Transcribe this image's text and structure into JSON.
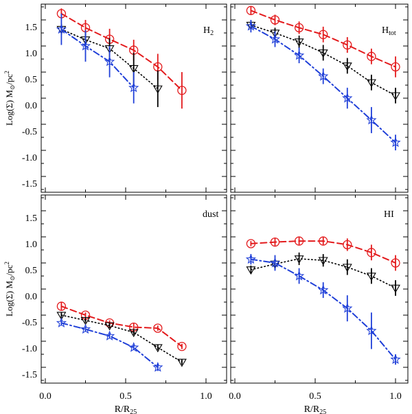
{
  "chart_data": [
    {
      "type": "line",
      "label": "H",
      "label_sub": "2",
      "xlim": [
        0,
        1.1
      ],
      "ylim": [
        -1.8,
        1.8
      ],
      "series": [
        {
          "name": "red",
          "color": "#e31a1c",
          "marker": "circle",
          "dash": "dashed",
          "x": [
            0.1,
            0.25,
            0.4,
            0.55,
            0.7,
            0.85
          ],
          "y": [
            1.62,
            1.35,
            1.13,
            0.92,
            0.6,
            0.15
          ],
          "err": [
            0.1,
            0.15,
            0.2,
            0.2,
            0.25,
            0.35
          ]
        },
        {
          "name": "black",
          "color": "#000000",
          "marker": "triangle-down",
          "dash": "dotted",
          "x": [
            0.1,
            0.25,
            0.4,
            0.55,
            0.7
          ],
          "y": [
            1.32,
            1.12,
            0.95,
            0.57,
            0.18
          ],
          "err": [
            0.1,
            0.15,
            0.2,
            0.3,
            0.35
          ]
        },
        {
          "name": "blue",
          "color": "#1f3fd8",
          "marker": "star",
          "dash": "dashdot",
          "x": [
            0.1,
            0.25,
            0.4,
            0.55
          ],
          "y": [
            1.32,
            1.0,
            0.7,
            0.2
          ],
          "err": [
            0.3,
            0.3,
            0.3,
            0.3
          ]
        }
      ]
    },
    {
      "type": "line",
      "label": "H",
      "label_sub": "tot",
      "xlim": [
        0,
        1.1
      ],
      "ylim": [
        -1.8,
        1.8
      ],
      "series": [
        {
          "name": "red",
          "color": "#e31a1c",
          "marker": "circle",
          "dash": "dashed",
          "x": [
            0.1,
            0.25,
            0.4,
            0.55,
            0.7,
            0.85,
            1.0
          ],
          "y": [
            1.68,
            1.5,
            1.35,
            1.22,
            1.02,
            0.8,
            0.6
          ],
          "err": [
            0.08,
            0.1,
            0.12,
            0.15,
            0.15,
            0.15,
            0.2
          ]
        },
        {
          "name": "black",
          "color": "#000000",
          "marker": "triangle-down",
          "dash": "dotted",
          "x": [
            0.1,
            0.25,
            0.4,
            0.55,
            0.7,
            0.85,
            1.0
          ],
          "y": [
            1.4,
            1.25,
            1.08,
            0.87,
            0.62,
            0.3,
            0.05
          ],
          "err": [
            0.08,
            0.1,
            0.12,
            0.15,
            0.15,
            0.15,
            0.15
          ]
        },
        {
          "name": "blue",
          "color": "#1f3fd8",
          "marker": "star",
          "dash": "dashdot",
          "x": [
            0.1,
            0.25,
            0.4,
            0.55,
            0.7,
            0.85,
            1.0
          ],
          "y": [
            1.38,
            1.13,
            0.82,
            0.42,
            0.0,
            -0.42,
            -0.85
          ],
          "err": [
            0.12,
            0.15,
            0.15,
            0.15,
            0.2,
            0.25,
            0.15
          ]
        }
      ]
    },
    {
      "type": "line",
      "label": "dust",
      "label_sub": "",
      "xlim": [
        0,
        1.1
      ],
      "ylim": [
        -1.8,
        1.8
      ],
      "series": [
        {
          "name": "red",
          "color": "#e31a1c",
          "marker": "circle",
          "dash": "dashed",
          "x": [
            0.1,
            0.25,
            0.4,
            0.55,
            0.7,
            0.85
          ],
          "y": [
            -0.33,
            -0.5,
            -0.65,
            -0.73,
            -0.75,
            -1.1
          ],
          "err": [
            0.08,
            0.05,
            0.05,
            0.08,
            0.05,
            0.05
          ]
        },
        {
          "name": "black",
          "color": "#000000",
          "marker": "triangle-down",
          "dash": "dotted",
          "x": [
            0.1,
            0.25,
            0.4,
            0.55,
            0.7,
            0.85
          ],
          "y": [
            -0.5,
            -0.6,
            -0.7,
            -0.83,
            -1.12,
            -1.4
          ],
          "err": [
            0.05,
            0.05,
            0.05,
            0.05,
            0.05,
            0.05
          ]
        },
        {
          "name": "blue",
          "color": "#1f3fd8",
          "marker": "star",
          "dash": "dashdot",
          "x": [
            0.1,
            0.25,
            0.4,
            0.55,
            0.7
          ],
          "y": [
            -0.65,
            -0.77,
            -0.9,
            -1.12,
            -1.5
          ],
          "err": [
            0.05,
            0.05,
            0.05,
            0.05,
            0.07
          ]
        }
      ]
    },
    {
      "type": "line",
      "label": "HI",
      "label_sub": "",
      "xlim": [
        0,
        1.1
      ],
      "ylim": [
        -1.8,
        1.8
      ],
      "series": [
        {
          "name": "red",
          "color": "#e31a1c",
          "marker": "circle",
          "dash": "dashed",
          "x": [
            0.1,
            0.25,
            0.4,
            0.55,
            0.7,
            0.85,
            1.0
          ],
          "y": [
            0.87,
            0.9,
            0.92,
            0.92,
            0.85,
            0.7,
            0.5
          ],
          "err": [
            0.05,
            0.08,
            0.08,
            0.08,
            0.12,
            0.15,
            0.15
          ]
        },
        {
          "name": "black",
          "color": "#000000",
          "marker": "triangle-down",
          "dash": "dotted",
          "x": [
            0.1,
            0.25,
            0.4,
            0.55,
            0.7,
            0.85,
            1.0
          ],
          "y": [
            0.37,
            0.48,
            0.58,
            0.55,
            0.42,
            0.25,
            0.02
          ],
          "err": [
            0.08,
            0.1,
            0.12,
            0.12,
            0.15,
            0.15,
            0.15
          ]
        },
        {
          "name": "blue",
          "color": "#1f3fd8",
          "marker": "star",
          "dash": "dashdot",
          "x": [
            0.1,
            0.25,
            0.4,
            0.55,
            0.7,
            0.85,
            1.0
          ],
          "y": [
            0.57,
            0.5,
            0.25,
            -0.02,
            -0.37,
            -0.8,
            -1.35
          ],
          "err": [
            0.1,
            0.15,
            0.15,
            0.15,
            0.25,
            0.35,
            0.1
          ]
        }
      ]
    }
  ],
  "axes": {
    "ylabel": "Log(Σ) M",
    "ylabel_sub": "⊙",
    "ylabel_unit": "/pc",
    "ylabel_sup": "2",
    "xlabel": "R/R",
    "xlabel_sub": "25",
    "xticks": [
      "0.0",
      "0.5",
      "1.0"
    ],
    "yticks": [
      "1.5",
      "1.0",
      "0.5",
      "0.0",
      "-0.5",
      "-1.0",
      "-1.5"
    ]
  }
}
